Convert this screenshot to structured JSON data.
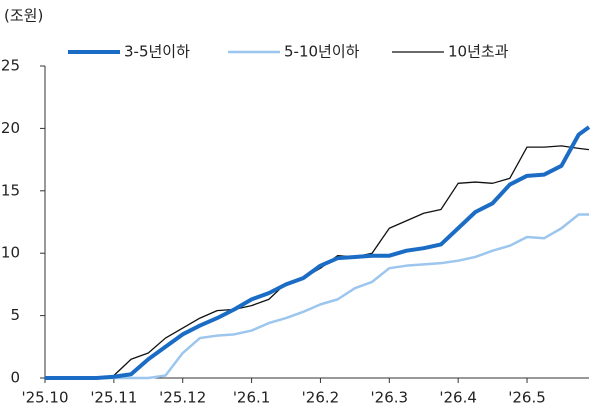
{
  "chart_data": {
    "type": "line",
    "unit_label": "(조원)",
    "x": [
      0,
      0.25,
      0.5,
      0.75,
      1,
      1.25,
      1.5,
      1.75,
      2,
      2.25,
      2.5,
      2.75,
      3,
      3.25,
      3.5,
      3.75,
      4,
      4.25,
      4.5,
      4.75,
      5,
      5.25,
      5.5,
      5.75,
      6,
      6.25,
      6.5,
      6.75,
      7,
      7.25,
      7.5,
      7.75,
      7.9
    ],
    "series": [
      {
        "name": "3-5년이하",
        "color": "#1a6cc4",
        "width": 4,
        "values": [
          0,
          0,
          0,
          0,
          0.1,
          0.3,
          1.5,
          2.5,
          3.5,
          4.2,
          4.8,
          5.5,
          6.3,
          6.8,
          7.5,
          8.0,
          9.0,
          9.6,
          9.7,
          9.8,
          9.8,
          10.2,
          10.4,
          10.7,
          12.0,
          13.3,
          14.0,
          15.5,
          16.2,
          16.3,
          17.0,
          19.5,
          20.1
        ]
      },
      {
        "name": "5-10년이하",
        "color": "#9cc6ee",
        "width": 2.5,
        "values": [
          0,
          0,
          0,
          0,
          0,
          0,
          0,
          0.2,
          2.0,
          3.2,
          3.4,
          3.5,
          3.8,
          4.4,
          4.8,
          5.3,
          5.9,
          6.3,
          7.2,
          7.7,
          8.8,
          9.0,
          9.1,
          9.2,
          9.4,
          9.7,
          10.2,
          10.6,
          11.3,
          11.2,
          12.0,
          13.1,
          13.1
        ]
      },
      {
        "name": "10년초과",
        "color": "#111111",
        "width": 1.3,
        "values": [
          0,
          0,
          0,
          0,
          0.2,
          1.5,
          2.0,
          3.2,
          4.0,
          4.8,
          5.4,
          5.5,
          5.8,
          6.3,
          7.6,
          8.0,
          8.8,
          9.8,
          9.7,
          10.0,
          12.0,
          12.6,
          13.2,
          13.5,
          15.6,
          15.7,
          15.6,
          16.0,
          18.5,
          18.5,
          18.6,
          18.4,
          18.3
        ]
      }
    ],
    "xlim": [
      0,
      7.9
    ],
    "xticks": [
      {
        "value": 0,
        "label": "'25.10"
      },
      {
        "value": 1,
        "label": "'25.11"
      },
      {
        "value": 2,
        "label": "'25.12"
      },
      {
        "value": 3,
        "label": "'26.1"
      },
      {
        "value": 4,
        "label": "'26.2"
      },
      {
        "value": 5,
        "label": "'26.3"
      },
      {
        "value": 6,
        "label": "'26.4"
      },
      {
        "value": 7,
        "label": "'26.5"
      }
    ],
    "ylim": [
      0,
      25
    ],
    "yticks": [
      0,
      5,
      10,
      15,
      20,
      25
    ],
    "grid": false,
    "legend": "top"
  }
}
